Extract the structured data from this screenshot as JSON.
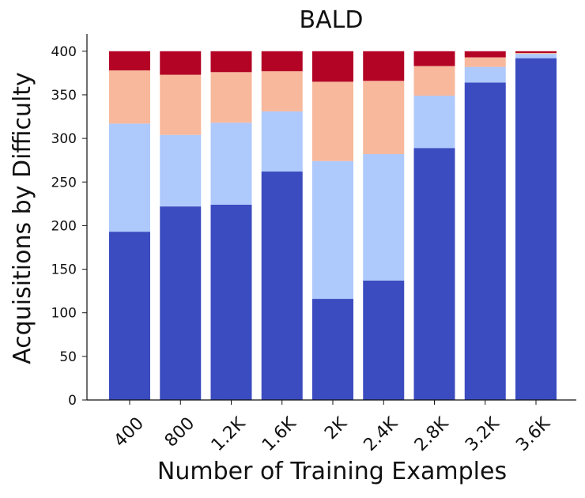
{
  "chart_data": {
    "type": "bar",
    "stacked": true,
    "title": "BALD",
    "xlabel": "Number of Training Examples",
    "ylabel": "Acquisitions by Difficulty",
    "categories": [
      "400",
      "800",
      "1.2K",
      "1.6K",
      "2K",
      "2.4K",
      "2.8K",
      "3.2K",
      "3.6K"
    ],
    "ylim": [
      0,
      420
    ],
    "yticks": [
      0,
      50,
      100,
      150,
      200,
      250,
      300,
      350,
      400
    ],
    "grid": false,
    "series": [
      {
        "color": "#3b4cc0",
        "values": [
          193,
          222,
          224,
          262,
          116,
          137,
          289,
          364,
          392
        ]
      },
      {
        "color": "#aec9fc",
        "values": [
          124,
          82,
          94,
          69,
          158,
          145,
          60,
          18,
          5
        ]
      },
      {
        "color": "#f7b89c",
        "values": [
          61,
          69,
          58,
          46,
          91,
          84,
          34,
          11,
          1
        ]
      },
      {
        "color": "#b40426",
        "values": [
          22,
          27,
          24,
          23,
          35,
          34,
          17,
          7,
          2
        ]
      }
    ]
  }
}
